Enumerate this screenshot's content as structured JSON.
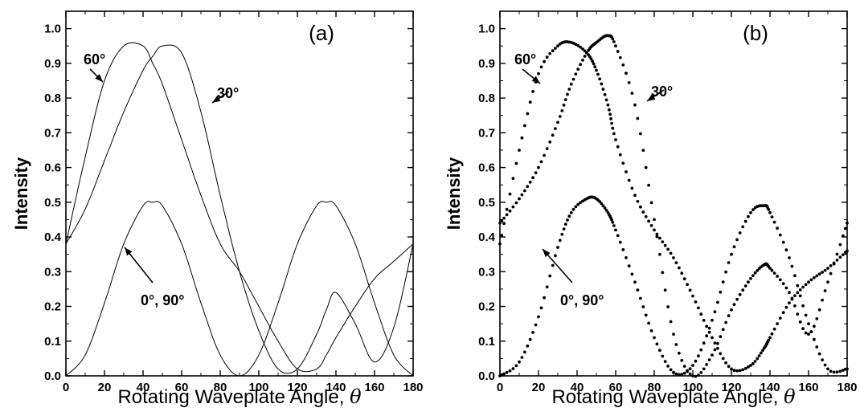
{
  "chart_data": [
    {
      "type": "line",
      "panel_label": "(a)",
      "xlabel": "Rotating Waveplate Angle, ",
      "xlabel_symbol": "θ",
      "ylabel": "Intensity",
      "xlim": [
        0,
        180
      ],
      "ylim": [
        0,
        1.05
      ],
      "xticks": [
        "0",
        "20",
        "40",
        "60",
        "80",
        "100",
        "120",
        "140",
        "160",
        "180"
      ],
      "yticks": [
        "0.0",
        "0.1",
        "0.2",
        "0.3",
        "0.4",
        "0.5",
        "0.6",
        "0.7",
        "0.8",
        "0.9",
        "1.0"
      ],
      "style": "line",
      "x": [
        0,
        10,
        20,
        30,
        40,
        45,
        50,
        60,
        70,
        80,
        90,
        100,
        110,
        120,
        130,
        135,
        140,
        150,
        160,
        170,
        180
      ],
      "series": [
        {
          "label": "0°, 90°",
          "values": [
            0.0,
            0.06,
            0.21,
            0.38,
            0.49,
            0.5,
            0.49,
            0.38,
            0.21,
            0.06,
            0.0,
            0.06,
            0.21,
            0.38,
            0.49,
            0.5,
            0.49,
            0.38,
            0.21,
            0.06,
            0.0
          ]
        },
        {
          "label": "60°",
          "values": [
            0.38,
            0.63,
            0.85,
            0.95,
            0.95,
            0.9,
            0.84,
            0.68,
            0.52,
            0.38,
            0.3,
            0.2,
            0.1,
            0.02,
            0.02,
            0.06,
            0.11,
            0.2,
            0.28,
            0.33,
            0.38
          ]
        },
        {
          "label": "30°",
          "values": [
            0.38,
            0.48,
            0.62,
            0.76,
            0.88,
            0.92,
            0.95,
            0.93,
            0.76,
            0.52,
            0.3,
            0.13,
            0.02,
            0.02,
            0.12,
            0.19,
            0.24,
            0.15,
            0.04,
            0.14,
            0.38
          ]
        }
      ],
      "annotations": [
        {
          "text": "60°"
        },
        {
          "text": "30°"
        },
        {
          "text": "0°, 90°"
        }
      ]
    },
    {
      "type": "scatter",
      "panel_label": "(b)",
      "xlabel": "Rotating Waveplate Angle, ",
      "xlabel_symbol": "θ",
      "ylabel": "Intensity",
      "xlim": [
        0,
        180
      ],
      "ylim": [
        0,
        1.05
      ],
      "xticks": [
        "0",
        "20",
        "40",
        "60",
        "80",
        "100",
        "120",
        "140",
        "160",
        "180"
      ],
      "yticks": [
        "0.0",
        "0.1",
        "0.2",
        "0.3",
        "0.4",
        "0.5",
        "0.6",
        "0.7",
        "0.8",
        "0.9",
        "1.0"
      ],
      "style": "dots",
      "x": [
        0,
        10,
        20,
        30,
        37,
        45,
        50,
        56,
        60,
        70,
        80,
        90,
        100,
        110,
        120,
        130,
        137,
        140,
        150,
        160,
        170,
        180
      ],
      "series": [
        {
          "label": "0°, 90°",
          "values": [
            0.0,
            0.04,
            0.17,
            0.37,
            0.47,
            0.51,
            0.51,
            0.47,
            0.42,
            0.27,
            0.11,
            0.01,
            0.03,
            0.16,
            0.35,
            0.47,
            0.49,
            0.47,
            0.34,
            0.15,
            0.02,
            0.02
          ]
        },
        {
          "label": "60°",
          "values": [
            0.38,
            0.65,
            0.87,
            0.95,
            0.96,
            0.93,
            0.88,
            0.78,
            0.68,
            0.52,
            0.42,
            0.34,
            0.23,
            0.11,
            0.02,
            0.03,
            0.08,
            0.11,
            0.21,
            0.27,
            0.31,
            0.36
          ]
        },
        {
          "label": "30°",
          "values": [
            0.44,
            0.51,
            0.6,
            0.73,
            0.84,
            0.93,
            0.96,
            0.98,
            0.95,
            0.78,
            0.45,
            0.12,
            0.0,
            0.06,
            0.19,
            0.28,
            0.32,
            0.31,
            0.24,
            0.12,
            0.27,
            0.44
          ]
        }
      ],
      "annotations": [
        {
          "text": "60°"
        },
        {
          "text": "30°"
        },
        {
          "text": "0°, 90°"
        }
      ]
    }
  ]
}
